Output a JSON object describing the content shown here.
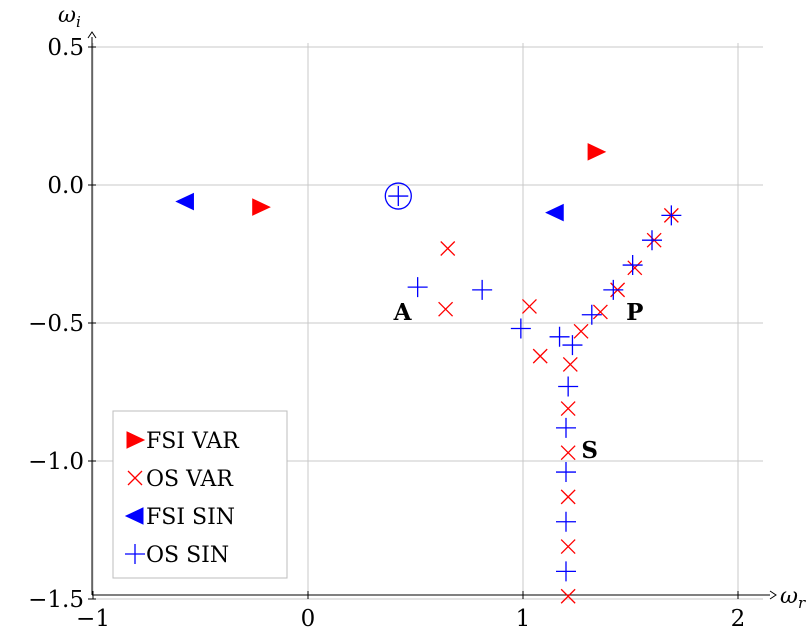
{
  "chart_data": {
    "type": "scatter",
    "xlabel": "ω_r",
    "ylabel": "ω_i",
    "xlim": [
      -1,
      2.1
    ],
    "ylim": [
      -1.5,
      0.52
    ],
    "x_ticks": [
      -1,
      0,
      1,
      2
    ],
    "x_tick_labels": [
      "−1",
      "0",
      "1",
      "2"
    ],
    "y_ticks": [
      0.5,
      0.0,
      -0.5,
      -1.0,
      -1.5
    ],
    "y_tick_labels": [
      "0.5",
      "0.0",
      "−0.5",
      "−1.0",
      "−1.5"
    ],
    "grid": true,
    "legend_position": "bottom-left",
    "series": [
      {
        "name": "FSI VAR",
        "marker": "triangle-right",
        "color": "#ff0000",
        "points": [
          [
            -0.22,
            -0.08
          ],
          [
            1.34,
            0.12
          ]
        ]
      },
      {
        "name": "OS VAR",
        "marker": "x",
        "color": "#ff0000",
        "points": [
          [
            0.65,
            -0.23
          ],
          [
            0.64,
            -0.45
          ],
          [
            1.03,
            -0.44
          ],
          [
            1.08,
            -0.62
          ],
          [
            1.27,
            -0.53
          ],
          [
            1.36,
            -0.46
          ],
          [
            1.44,
            -0.38
          ],
          [
            1.52,
            -0.3
          ],
          [
            1.61,
            -0.2
          ],
          [
            1.69,
            -0.11
          ],
          [
            1.22,
            -0.65
          ],
          [
            1.21,
            -0.81
          ],
          [
            1.21,
            -0.97
          ],
          [
            1.21,
            -1.13
          ],
          [
            1.21,
            -1.31
          ],
          [
            1.21,
            -1.49
          ]
        ]
      },
      {
        "name": "FSI SIN",
        "marker": "triangle-left",
        "color": "#0000ff",
        "points": [
          [
            -0.57,
            -0.06
          ],
          [
            1.15,
            -0.1
          ]
        ]
      },
      {
        "name": "OS SIN",
        "marker": "plus",
        "color": "#0000ff",
        "points": [
          [
            0.42,
            -0.04
          ],
          [
            0.51,
            -0.37
          ],
          [
            0.81,
            -0.38
          ],
          [
            0.99,
            -0.52
          ],
          [
            1.17,
            -0.55
          ],
          [
            1.23,
            -0.58
          ],
          [
            1.32,
            -0.47
          ],
          [
            1.42,
            -0.38
          ],
          [
            1.51,
            -0.29
          ],
          [
            1.6,
            -0.2
          ],
          [
            1.69,
            -0.11
          ],
          [
            1.21,
            -0.73
          ],
          [
            1.2,
            -0.88
          ],
          [
            1.2,
            -1.04
          ],
          [
            1.2,
            -1.22
          ],
          [
            1.2,
            -1.4
          ]
        ]
      }
    ],
    "circled_point": [
      0.42,
      -0.04
    ],
    "annotations": [
      {
        "text": "A",
        "x": 0.44,
        "y": -0.46
      },
      {
        "text": "P",
        "x": 1.52,
        "y": -0.46
      },
      {
        "text": "S",
        "x": 1.31,
        "y": -0.96
      }
    ]
  }
}
